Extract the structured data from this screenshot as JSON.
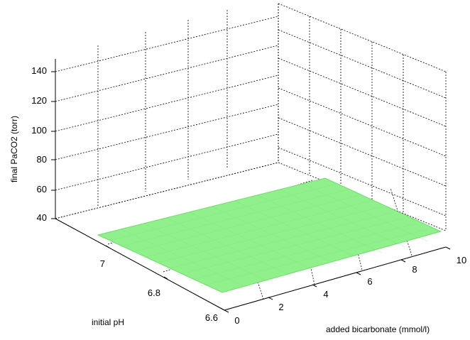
{
  "chart_data": {
    "type": "surface",
    "title": "",
    "xlabel": "added bicarbonate (mmol/l)",
    "ylabel": "initial pH",
    "zlabel": "final PaCO2 (torr)",
    "xlim": [
      0,
      10
    ],
    "ylim": [
      6.6,
      7.2
    ],
    "zlim": [
      30,
      145
    ],
    "x_ticks": [
      "0",
      "2",
      "4",
      "6",
      "8",
      "10"
    ],
    "y_ticks": [
      "6.6",
      "6.8",
      "7"
    ],
    "z_ticks": [
      "40",
      "60",
      "80",
      "100",
      "120",
      "140"
    ],
    "grid": true,
    "surface": {
      "description_color": "#8ef08a",
      "z_value_approx": 40
    }
  },
  "colors": {
    "surface": "#90f08c",
    "surface_mesh": "#6edc6a"
  }
}
